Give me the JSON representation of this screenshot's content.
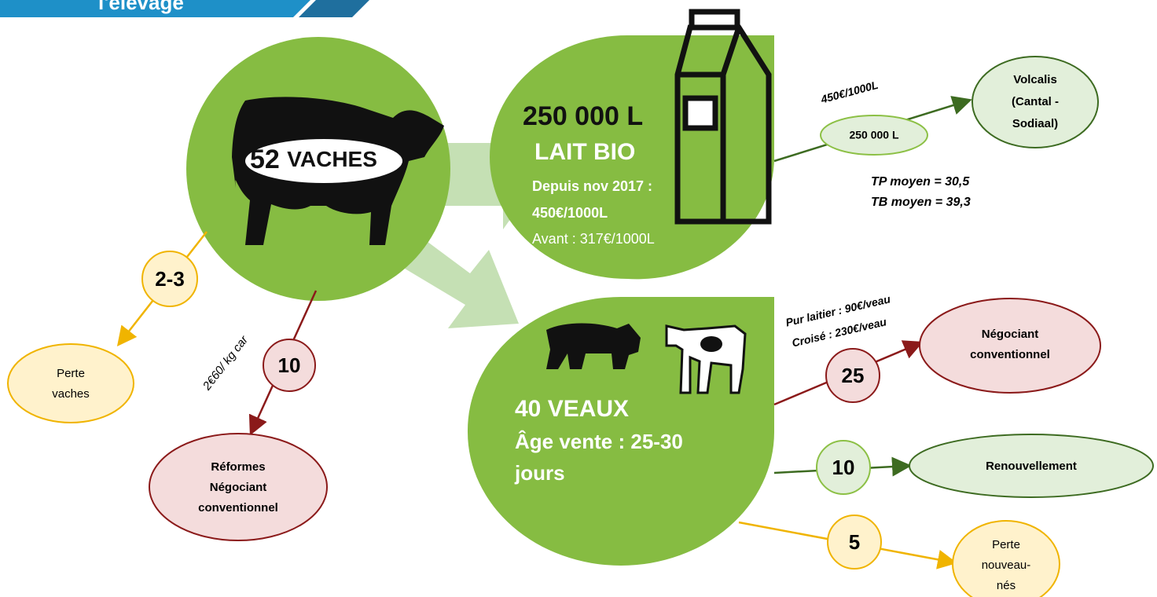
{
  "header": {
    "title": "l'élevage"
  },
  "herd": {
    "count": "52",
    "label": "VACHES"
  },
  "milk": {
    "volume": "250 000 L",
    "label": "LAIT BIO",
    "since": "Depuis nov 2017 :",
    "price": "450€/1000L",
    "before": "Avant : 317€/1000L"
  },
  "milk_flow": {
    "price": "450€/1000L",
    "volume": "250 000 L",
    "buyer": [
      "Volcalis",
      "(Cantal -",
      "Sodiaal)"
    ],
    "tp": "TP moyen = 30,5",
    "tb": "TB moyen = 39,3"
  },
  "calves": {
    "label": "40 VEAUX",
    "age": [
      "Âge vente : 25-30",
      "jours"
    ]
  },
  "calf_sales": {
    "prices": [
      "Pur laitier : 90€/veau",
      "Croisé : 230€/veau"
    ],
    "count": "25",
    "buyer": [
      "Négociant",
      "conventionnel"
    ]
  },
  "renewal": {
    "count": "10",
    "label": "Renouvellement"
  },
  "calf_loss": {
    "count": "5",
    "label": [
      "Perte",
      "nouveau-",
      "nés"
    ]
  },
  "cow_loss": {
    "count": "2-3",
    "label": [
      "Perte",
      "vaches"
    ]
  },
  "culls": {
    "count": "10",
    "price": "2€60/ kg car",
    "buyer": [
      "Réformes",
      "Négociant",
      "conventionnel"
    ]
  }
}
